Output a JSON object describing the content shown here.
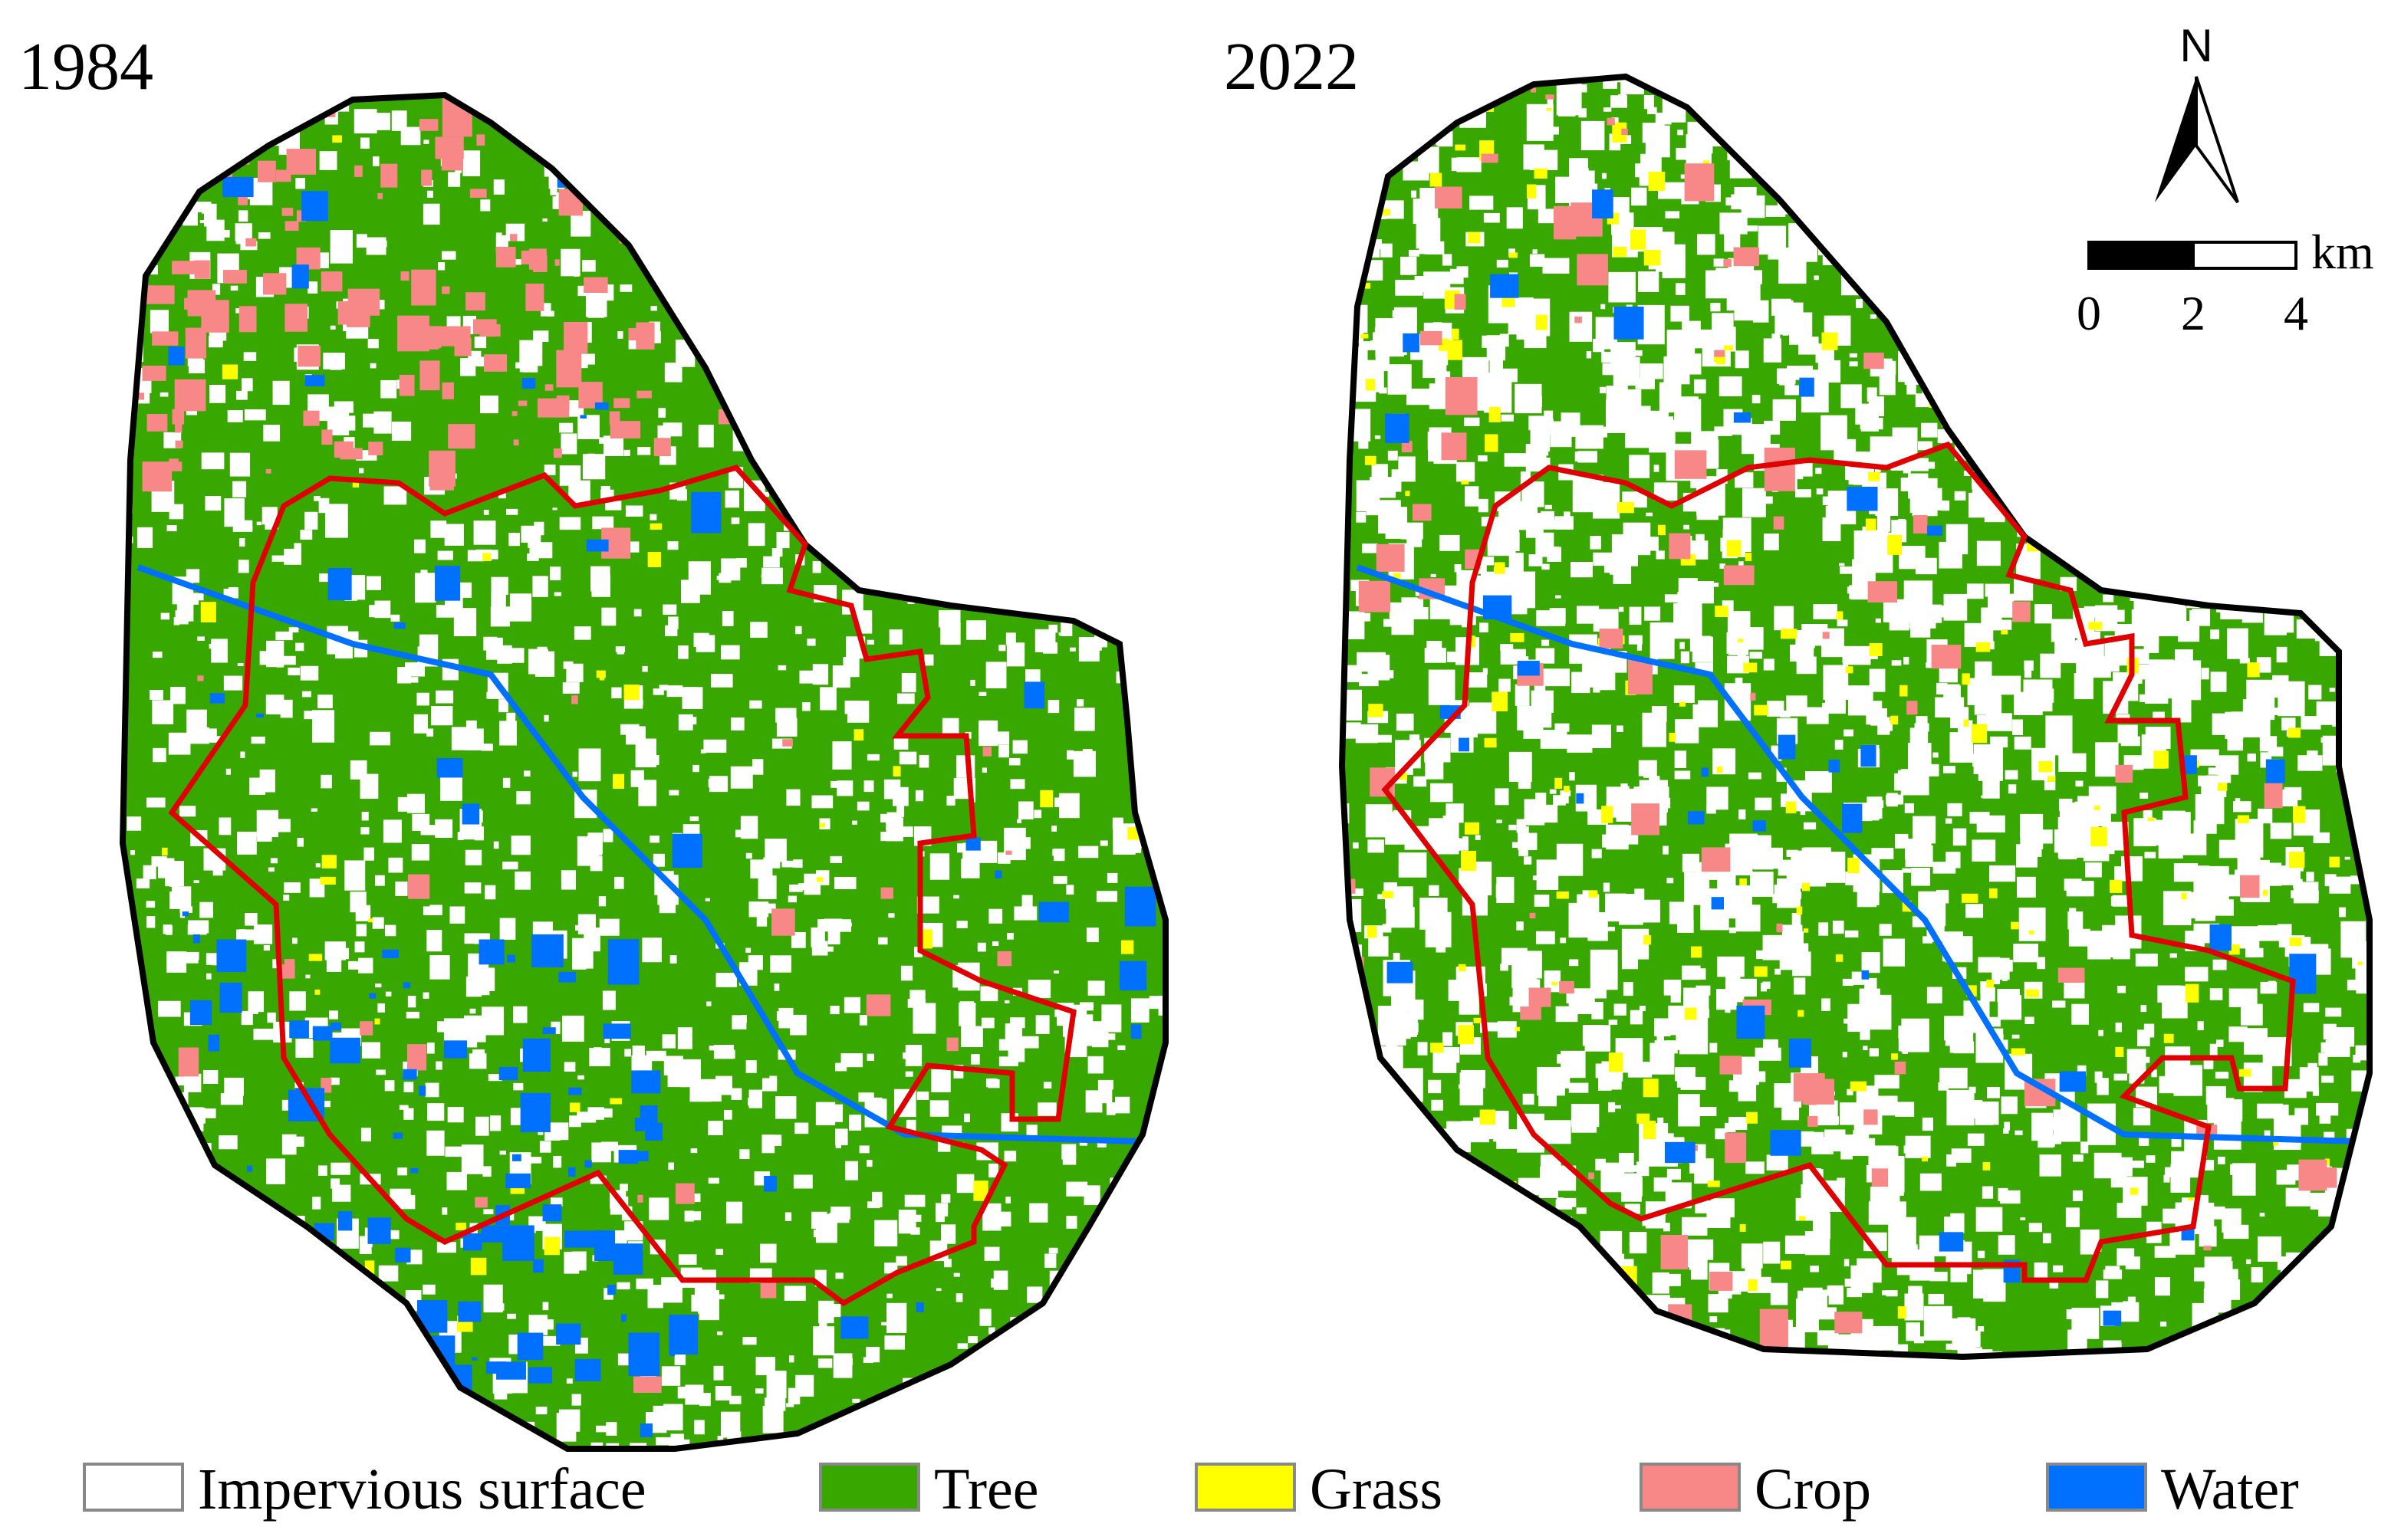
{
  "panels": [
    {
      "title": "1984"
    },
    {
      "title": "2022"
    }
  ],
  "legend": [
    {
      "label": "Impervious surface",
      "color": "#ffffff"
    },
    {
      "label": "Tree",
      "color": "#38a800"
    },
    {
      "label": "Grass",
      "color": "#ffff00"
    },
    {
      "label": "Crop",
      "color": "#f88888"
    },
    {
      "label": "Water",
      "color": "#0070ff"
    }
  ],
  "north": "N",
  "scale_bar": {
    "ticks": [
      "0",
      "2",
      "4"
    ],
    "unit": "km"
  }
}
